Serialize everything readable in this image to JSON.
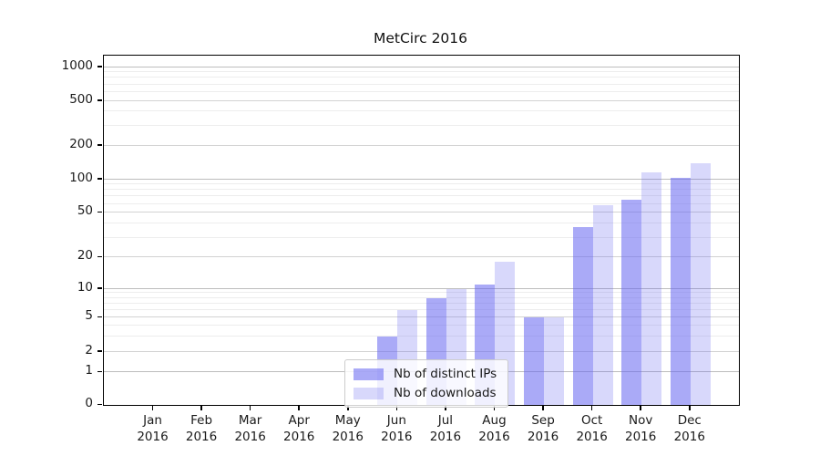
{
  "title": "MetCirc 2016",
  "chart_data": {
    "type": "bar",
    "title": "MetCirc 2016",
    "xlabel": "",
    "ylabel": "",
    "scale": "symlog-like (0 then log 1..1000)",
    "grid": "horizontal major and minor gridlines on",
    "categories": [
      "Jan",
      "Feb",
      "Mar",
      "Apr",
      "May",
      "Jun",
      "Jul",
      "Aug",
      "Sep",
      "Oct",
      "Nov",
      "Dec"
    ],
    "category_year": "2016",
    "yticks": [
      0,
      1,
      2,
      5,
      10,
      20,
      50,
      100,
      200,
      500,
      1000
    ],
    "yminors": [
      3,
      4,
      6,
      7,
      8,
      9,
      30,
      40,
      60,
      70,
      80,
      90,
      300,
      400,
      600,
      700,
      800,
      900
    ],
    "ylim": [
      0,
      1300
    ],
    "series": [
      {
        "name": "Nb of distinct IPs",
        "color": "rgba(100,100,240,0.55)",
        "values": [
          0,
          0,
          0,
          0,
          0,
          3,
          8,
          11,
          5,
          37,
          66,
          102
        ]
      },
      {
        "name": "Nb of downloads",
        "color": "rgba(100,100,240,0.25)",
        "values": [
          0,
          0,
          0,
          0,
          0,
          6,
          10,
          18,
          5,
          58,
          115,
          140
        ]
      }
    ],
    "legend_position": "lower center",
    "colors": {
      "bar_base": "#6464f0",
      "frame": "#000000",
      "grid_major": "#d2d2d2",
      "grid_minor": "#ededed",
      "text": "#1a1a1a"
    }
  }
}
